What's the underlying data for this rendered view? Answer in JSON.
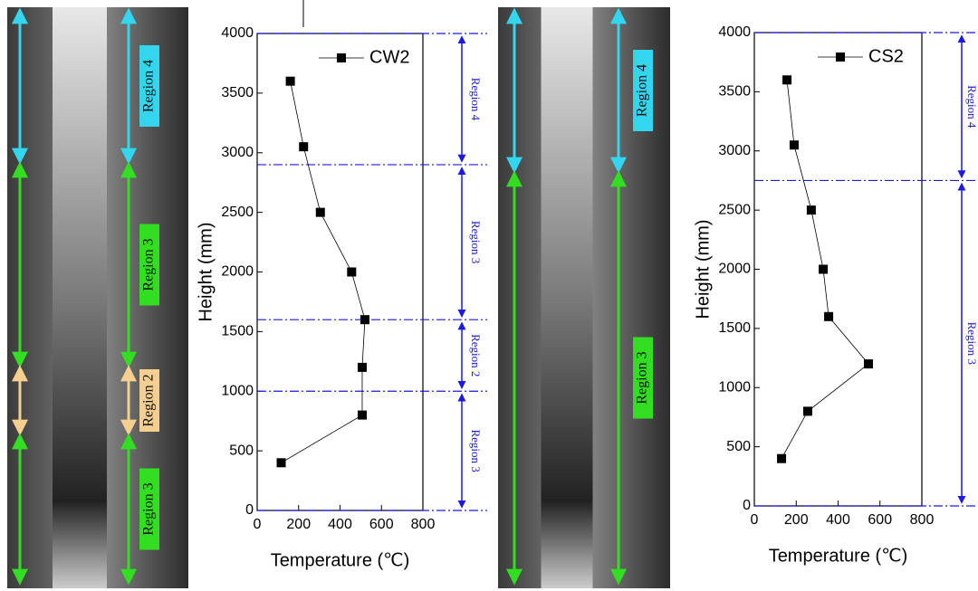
{
  "chart_data": [
    {
      "type": "line",
      "x_label": "Temperature (℃)",
      "y_label": "Height (mm)",
      "series": [
        {
          "name": "CW2",
          "color": "#000000",
          "x": [
            116,
            507,
            507,
            520,
            456,
            305,
            224,
            160
          ],
          "values": [
            400,
            800,
            1200,
            1600,
            2000,
            2500,
            3050,
            3600
          ]
        }
      ],
      "xlim": [
        0,
        800
      ],
      "xticks": [
        0,
        200,
        400,
        600,
        800
      ],
      "ylim": [
        0,
        4000
      ],
      "yticks": [
        0,
        500,
        1000,
        1500,
        2000,
        2500,
        3000,
        3500,
        4000
      ],
      "legend": "upper right",
      "region_boundaries": [
        4000,
        2900,
        1600,
        1000,
        0
      ],
      "region_labels": [
        "Region 4",
        "Region 3",
        "Region 2",
        "Region 3"
      ],
      "region_color": "#1a1ae6"
    },
    {
      "type": "line",
      "x_label": "Temperature (℃)",
      "y_label": "Height (mm)",
      "series": [
        {
          "name": "CS2",
          "color": "#000000",
          "x": [
            130,
            255,
            545,
            355,
            329,
            272,
            190,
            156
          ],
          "values": [
            400,
            800,
            1200,
            1600,
            2000,
            2500,
            3050,
            3600
          ]
        }
      ],
      "xlim": [
        0,
        800
      ],
      "xticks": [
        0,
        200,
        400,
        600,
        800
      ],
      "ylim": [
        0,
        4000
      ],
      "yticks": [
        0,
        500,
        1000,
        1500,
        2000,
        2500,
        3000,
        3500,
        4000
      ],
      "legend": "upper right",
      "region_boundaries": [
        4000,
        2750,
        0
      ],
      "region_labels": [
        "Region 4",
        "Region 3"
      ],
      "region_color": "#1a1ae6"
    }
  ],
  "photos": [
    {
      "labels": [
        "Region 4",
        "Region 3",
        "Region 2",
        "Region 3"
      ],
      "colors": [
        "#33d6ee",
        "#33dd22",
        "#f5cf8f",
        "#33dd22"
      ]
    },
    {
      "labels": [
        "Region 4",
        "Region 3"
      ],
      "colors": [
        "#33d6ee",
        "#33dd22"
      ]
    }
  ]
}
